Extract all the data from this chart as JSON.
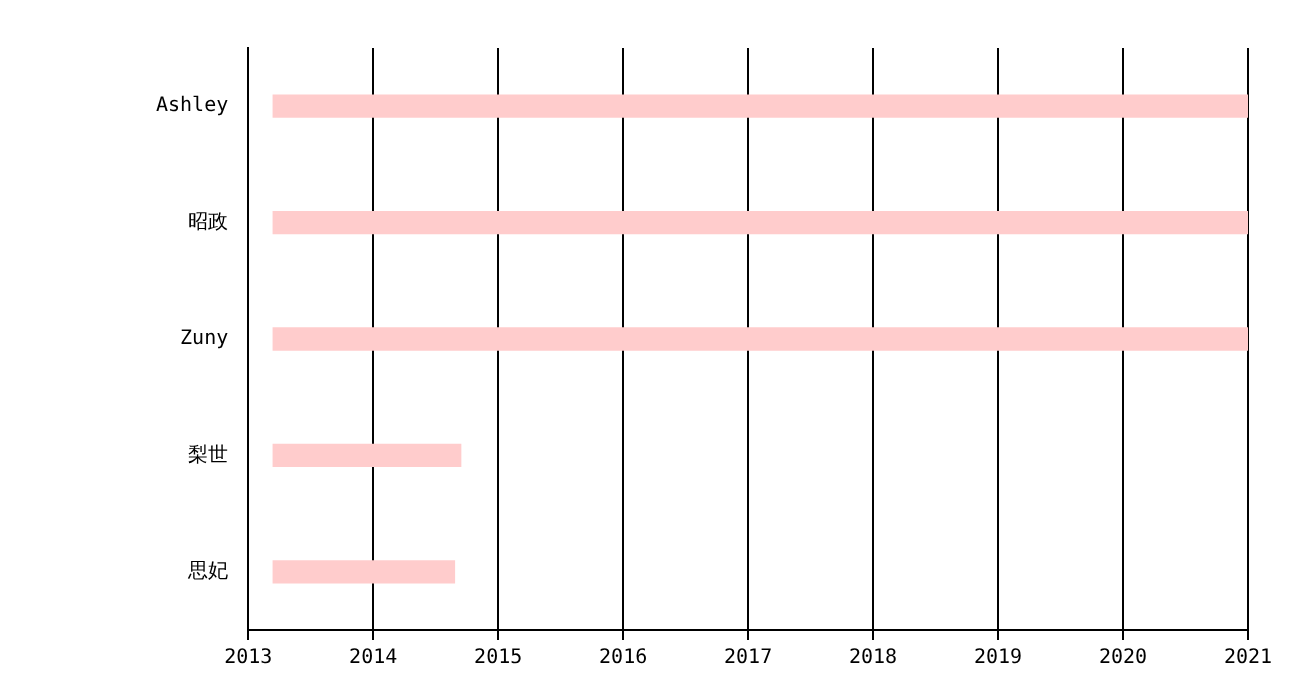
{
  "chart_data": {
    "type": "bar",
    "orientation": "horizontal",
    "categories": [
      "Ashley",
      "昭政",
      "Zuny",
      "梨世",
      "思妃"
    ],
    "base": [
      2013.2,
      2013.2,
      2013.2,
      2013.2,
      2013.2
    ],
    "values": [
      7.8,
      7.8,
      7.8,
      1.5,
      1.45
    ],
    "color": "#ffcccc",
    "xlim": [
      2013,
      2021
    ],
    "xticks": [
      2013,
      2014,
      2015,
      2016,
      2017,
      2018,
      2019,
      2020,
      2021
    ],
    "grid": "x",
    "legend": false
  }
}
